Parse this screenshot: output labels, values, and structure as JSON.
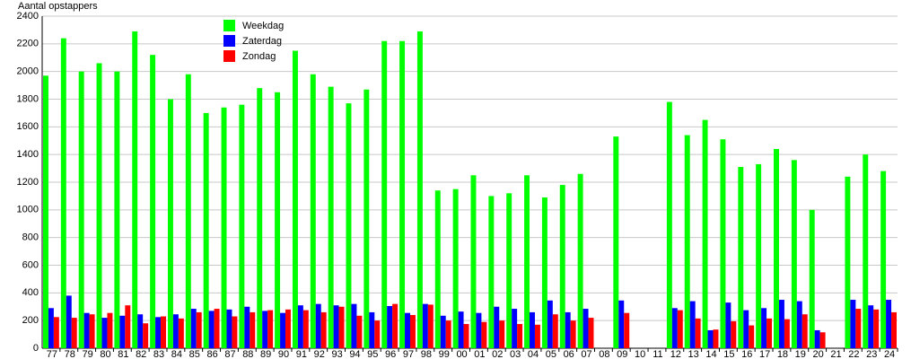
{
  "chart_data": {
    "type": "bar",
    "y_label": "Aantal opstappers",
    "categories": [
      "77",
      "78",
      "79",
      "80",
      "81",
      "82",
      "83",
      "84",
      "85",
      "86",
      "87",
      "88",
      "89",
      "90",
      "91",
      "92",
      "93",
      "94",
      "95",
      "96",
      "97",
      "98",
      "99",
      "00",
      "01",
      "02",
      "03",
      "04",
      "05",
      "06",
      "07",
      "08",
      "09",
      "10",
      "11",
      "12",
      "13",
      "14",
      "15",
      "16",
      "17",
      "18",
      "19",
      "20",
      "21",
      "22",
      "23",
      "24"
    ],
    "series": [
      {
        "name": "Weekdag",
        "color": "#00ff00",
        "values": [
          1970,
          2240,
          2000,
          2060,
          2000,
          2290,
          2120,
          1800,
          1980,
          1700,
          1740,
          1760,
          1880,
          1850,
          2150,
          1980,
          1890,
          1770,
          1870,
          2220,
          2220,
          2290,
          1140,
          1150,
          1250,
          1100,
          1120,
          1250,
          1090,
          1180,
          1260,
          null,
          1530,
          null,
          null,
          1780,
          1540,
          1650,
          1510,
          1310,
          1330,
          1440,
          1360,
          1000,
          null,
          1240,
          1400,
          1280
        ]
      },
      {
        "name": "Zaterdag",
        "color": "#0000ff",
        "values": [
          290,
          380,
          255,
          220,
          235,
          245,
          225,
          245,
          285,
          270,
          280,
          300,
          270,
          255,
          310,
          320,
          310,
          320,
          260,
          305,
          255,
          320,
          235,
          265,
          255,
          300,
          285,
          260,
          345,
          260,
          285,
          null,
          345,
          null,
          null,
          290,
          340,
          130,
          330,
          275,
          290,
          350,
          340,
          130,
          null,
          350,
          310,
          350
        ]
      },
      {
        "name": "Zondag",
        "color": "#ff0000",
        "values": [
          225,
          220,
          245,
          255,
          310,
          180,
          230,
          215,
          260,
          285,
          230,
          260,
          275,
          280,
          275,
          260,
          300,
          235,
          200,
          320,
          240,
          315,
          200,
          175,
          190,
          200,
          175,
          170,
          245,
          200,
          220,
          null,
          255,
          null,
          null,
          275,
          215,
          135,
          195,
          165,
          215,
          210,
          245,
          115,
          null,
          285,
          280,
          260
        ]
      }
    ],
    "ylim": [
      0,
      2400
    ],
    "yticks": [
      0,
      200,
      400,
      600,
      800,
      1000,
      1200,
      1400,
      1600,
      1800,
      2000,
      2200,
      2400
    ],
    "grid": true
  }
}
